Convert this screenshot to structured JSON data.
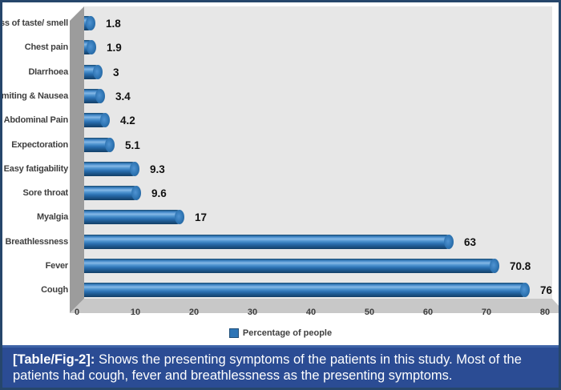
{
  "chart_data": {
    "type": "bar",
    "orientation": "horizontal",
    "style": "3d-cylinder",
    "title": "",
    "categories": [
      "Loss of taste/ smell",
      "Chest pain",
      "DIarrhoea",
      "Vomiting & Nausea",
      "Abdominal Pain",
      "Expectoration",
      "Easy fatigability",
      "Sore throat",
      "Myalgia",
      "Breathlessness",
      "Fever",
      "Cough"
    ],
    "values": [
      1.8,
      1.9,
      3,
      3.4,
      4.2,
      5.1,
      9.3,
      9.6,
      17,
      63,
      70.8,
      76
    ],
    "value_labels": [
      "1.8",
      "1.9",
      "3",
      "3.4",
      "4.2",
      "5.1",
      "9.3",
      "9.6",
      "17",
      "63",
      "70.8",
      "76"
    ],
    "xlabel": "",
    "ylabel": "",
    "xlim": [
      0,
      80
    ],
    "xticks": [
      "0",
      "10",
      "20",
      "30",
      "40",
      "50",
      "60",
      "70",
      "80"
    ],
    "grid": false,
    "legend_position": "bottom",
    "legend": [
      {
        "label": "Percentage of people",
        "color": "#2e75b6"
      }
    ]
  },
  "caption": {
    "label": "[Table/Fig-2]:",
    "text": " Shows the presenting symptoms of the patients in this study. Most of the patients had cough, fever and breathlessness as the presenting symptoms."
  },
  "colors": {
    "bar": "#2e75b6",
    "plot_background": "#e7e7e7",
    "wall": "#9c9c9c",
    "floor": "#c8c8c8",
    "frame_border": "#26466b",
    "caption_background": "#2b4c94",
    "caption_text": "#ffffff"
  }
}
